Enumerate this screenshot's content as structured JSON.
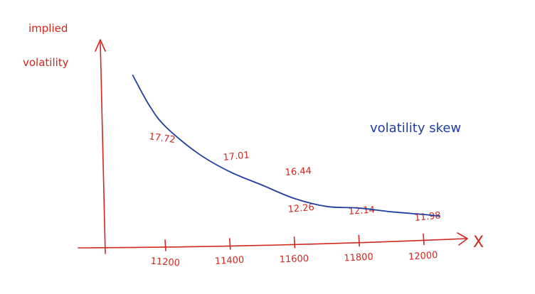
{
  "chart_data": {
    "type": "line",
    "ylabel_line1": "implied",
    "ylabel_line2": "volatility",
    "xlabel": "X",
    "annotation": "volatility skew",
    "x": [
      11200,
      11400,
      11600,
      11800,
      12000
    ],
    "tick_labels": [
      "11200",
      "11400",
      "11600",
      "11800",
      "12000"
    ],
    "point_labels": [
      "17.72",
      "17.01",
      "16.44",
      "12.26",
      "12.14",
      "11.98"
    ],
    "curve_x": [
      11100,
      11150,
      11200,
      11300,
      11400,
      11500,
      11600,
      11700,
      11800,
      11900,
      12000,
      12050
    ],
    "curve_y": [
      17.9,
      17.35,
      16.95,
      16.45,
      16.1,
      15.85,
      15.6,
      15.45,
      15.42,
      15.35,
      15.3,
      15.27
    ],
    "colors": {
      "axis": "#d0281e",
      "curve": "#1f3f9e",
      "label": "#d0281e",
      "annotation": "#1f3f9e"
    }
  }
}
